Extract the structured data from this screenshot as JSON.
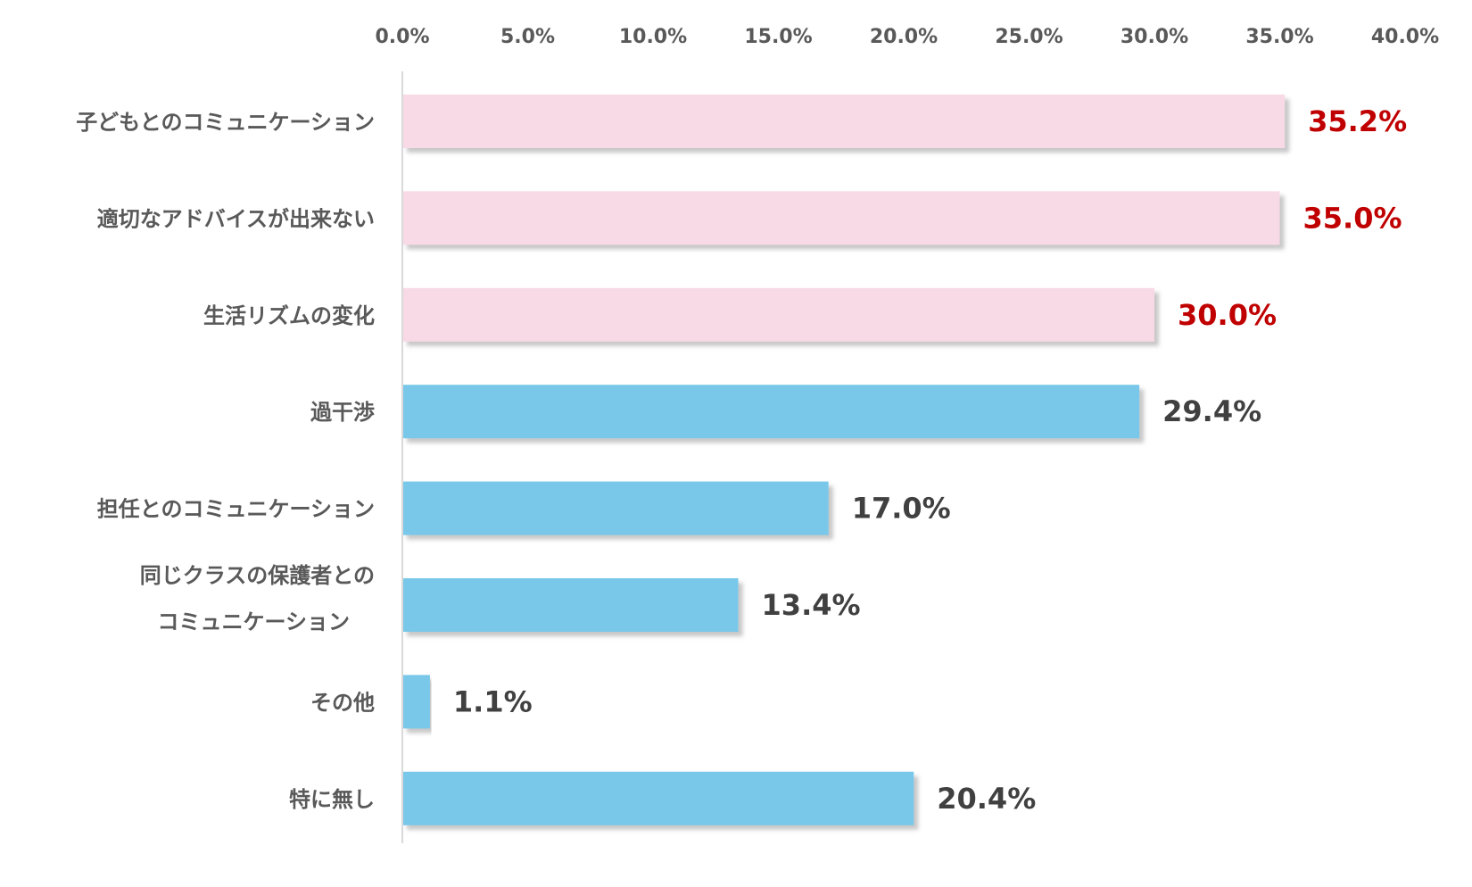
{
  "chart_data": {
    "type": "bar",
    "orientation": "horizontal",
    "categories": [
      [
        "子どもとのコミュニケーション"
      ],
      [
        "適切なアドバイスが出来ない"
      ],
      [
        "生活リズムの変化"
      ],
      [
        "過干渉"
      ],
      [
        "担任とのコミュニケーション"
      ],
      [
        "同じクラスの保護者との",
        "コミュニケーション"
      ],
      [
        "その他"
      ],
      [
        "特に無し"
      ]
    ],
    "values": [
      35.2,
      35.0,
      30.0,
      29.4,
      17.0,
      13.4,
      1.1,
      20.4
    ],
    "value_labels": [
      "35.2%",
      "35.0%",
      "30.0%",
      "29.4%",
      "17.0%",
      "13.4%",
      "1.1%",
      "20.4%"
    ],
    "highlight_count": 3,
    "xlim": [
      0,
      40
    ],
    "x_ticks": [
      "0.0%",
      "5.0%",
      "10.0%",
      "15.0%",
      "20.0%",
      "25.0%",
      "30.0%",
      "35.0%",
      "40.0%"
    ],
    "axis_position": "top",
    "grid": false,
    "legend": "none",
    "colors": {
      "highlight_bar": "#f8d9e6",
      "normal_bar": "#79c8ea",
      "highlight_label": "#c00000",
      "normal_label": "#404040",
      "axis_line": "#d9d9d9",
      "tick_text": "#595959",
      "category_text": "#595959",
      "shadow": "#b0b0b0"
    }
  }
}
